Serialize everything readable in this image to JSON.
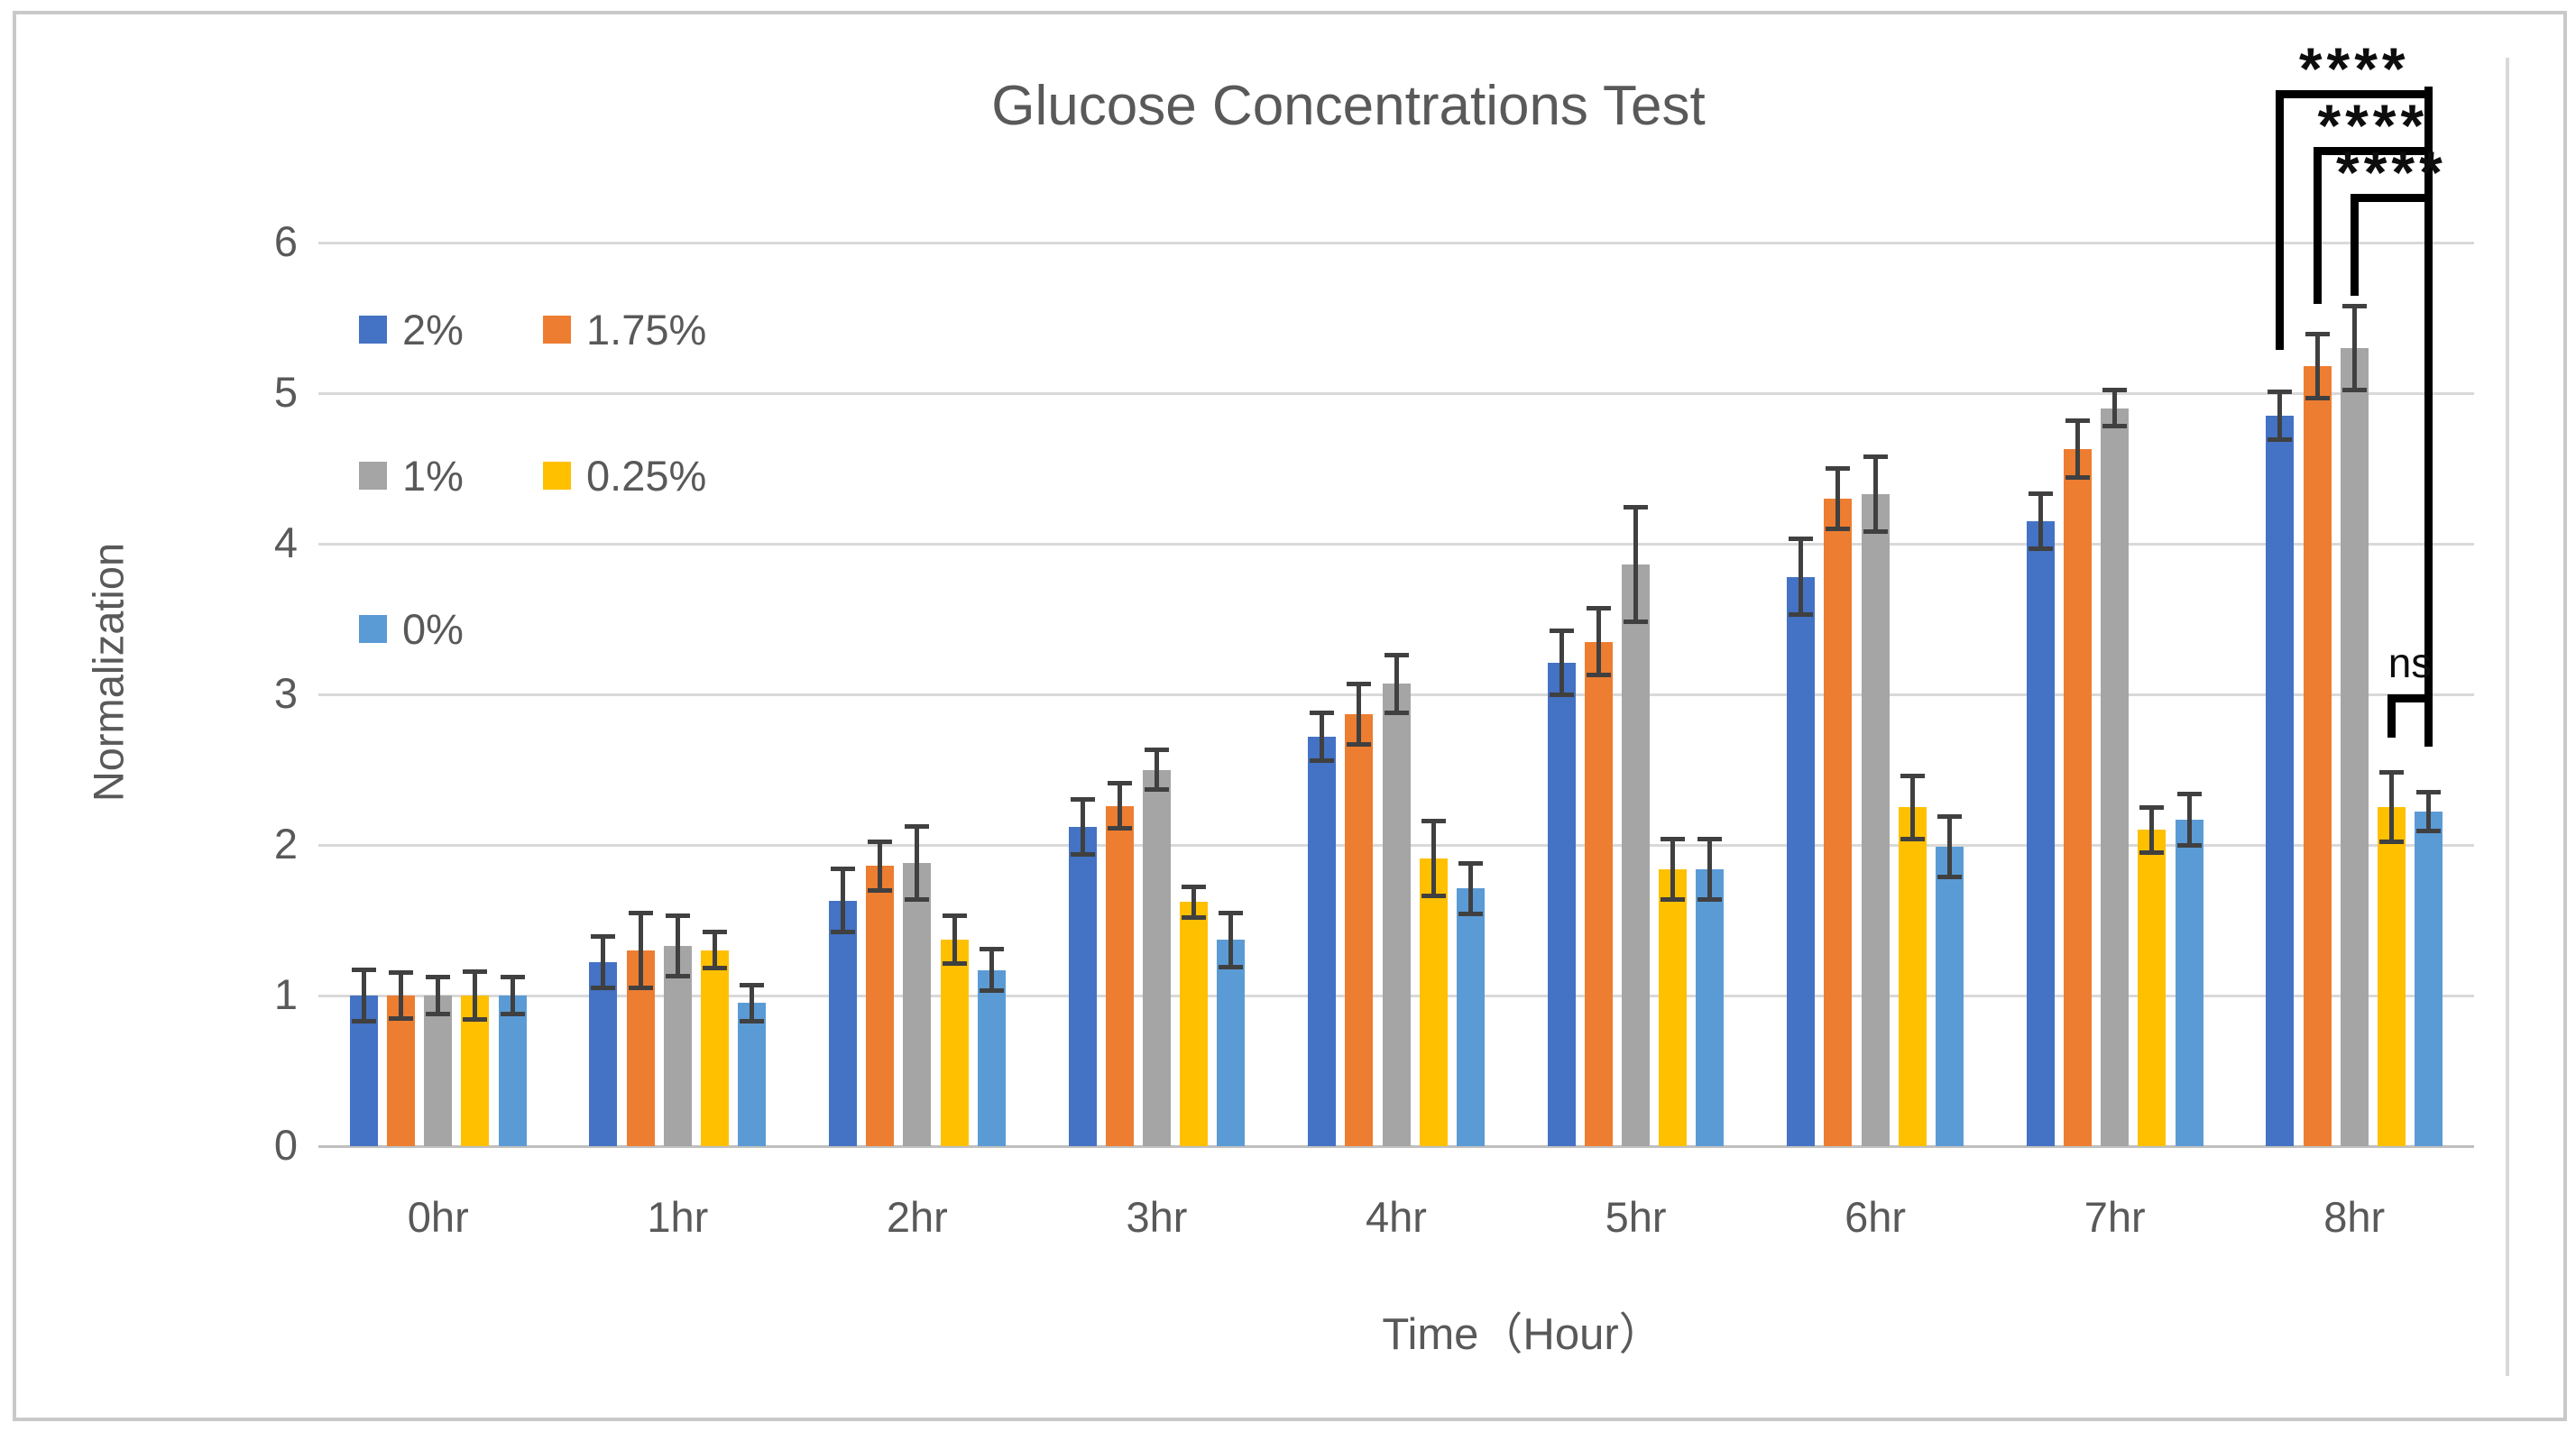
{
  "chart_data": {
    "type": "bar",
    "title": "Glucose Concentrations Test",
    "xlabel": "Time（Hour）",
    "ylabel": "Normalization",
    "categories": [
      "0hr",
      "1hr",
      "2hr",
      "3hr",
      "4hr",
      "5hr",
      "6hr",
      "7hr",
      "8hr"
    ],
    "series": [
      {
        "name": "2%",
        "color": "#4472C4",
        "values": [
          1.0,
          1.22,
          1.63,
          2.12,
          2.72,
          3.21,
          3.78,
          4.15,
          4.85
        ],
        "errors": [
          0.17,
          0.17,
          0.21,
          0.18,
          0.16,
          0.21,
          0.25,
          0.18,
          0.16
        ]
      },
      {
        "name": "1.75%",
        "color": "#ED7D31",
        "values": [
          1.0,
          1.3,
          1.86,
          2.26,
          2.87,
          3.35,
          4.3,
          4.63,
          5.18
        ],
        "errors": [
          0.15,
          0.25,
          0.16,
          0.15,
          0.2,
          0.22,
          0.2,
          0.19,
          0.21
        ]
      },
      {
        "name": "1%",
        "color": "#A5A5A5",
        "values": [
          1.0,
          1.33,
          1.88,
          2.5,
          3.07,
          3.86,
          4.33,
          4.9,
          5.3
        ],
        "errors": [
          0.12,
          0.2,
          0.24,
          0.13,
          0.19,
          0.38,
          0.25,
          0.12,
          0.28
        ]
      },
      {
        "name": "0.25%",
        "color": "#FFC000",
        "values": [
          1.0,
          1.3,
          1.37,
          1.62,
          1.91,
          1.84,
          2.25,
          2.1,
          2.25
        ],
        "errors": [
          0.16,
          0.12,
          0.16,
          0.1,
          0.25,
          0.2,
          0.21,
          0.15,
          0.23
        ]
      },
      {
        "name": "0%",
        "color": "#5B9BD5",
        "values": [
          1.0,
          0.95,
          1.17,
          1.37,
          1.71,
          1.84,
          1.99,
          2.17,
          2.22
        ],
        "errors": [
          0.12,
          0.12,
          0.14,
          0.18,
          0.17,
          0.2,
          0.2,
          0.17,
          0.13
        ]
      }
    ],
    "ylim": [
      0,
      6
    ],
    "yticks": [
      0,
      1,
      2,
      3,
      4,
      5,
      6
    ],
    "grid": "horizontal",
    "legend_position": "inside-top-left",
    "error_bars": true,
    "error_color": "#404040",
    "annotations": [
      {
        "label": "****",
        "series_a": "2%",
        "series_b": "0%",
        "category": "8hr"
      },
      {
        "label": "****",
        "series_a": "1.75%",
        "series_b": "0%",
        "category": "8hr"
      },
      {
        "label": "****",
        "series_a": "1%",
        "series_b": "0%",
        "category": "8hr"
      },
      {
        "label": "ns",
        "series_a": "0.25%",
        "series_b": "0%",
        "category": "8hr"
      }
    ]
  },
  "legend": {
    "items": [
      {
        "label": "2%",
        "color": "#4472C4"
      },
      {
        "label": "1.75%",
        "color": "#ED7D31"
      },
      {
        "label": "1%",
        "color": "#A5A5A5"
      },
      {
        "label": "0.25%",
        "color": "#FFC000"
      },
      {
        "label": "0%",
        "color": "#5B9BD5"
      }
    ]
  },
  "colors": {
    "text": "#595959",
    "gridline": "#D9D9D9",
    "axis_line": "#BFBFBF",
    "error_bar": "#404040",
    "annotation": "#0D0D0D",
    "frame_border": "#C9C9C9"
  }
}
